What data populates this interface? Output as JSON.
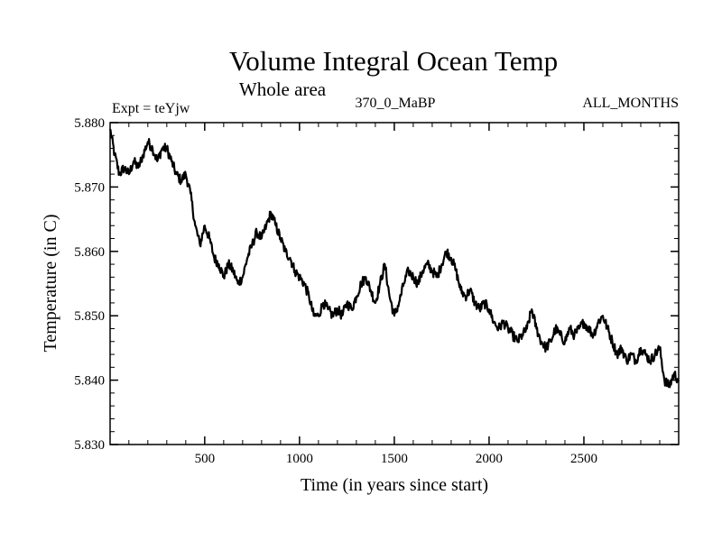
{
  "chart_data": {
    "type": "line",
    "title": "Volume Integral Ocean Temp",
    "subtitle": "Whole area",
    "left_label": "Expt = teYjw",
    "center_label": "370_0_MaBP",
    "right_label": "ALL_MONTHS",
    "xlabel": "Time (in years since start)",
    "ylabel": "Temperature (in C)",
    "xlim": [
      1,
      3000
    ],
    "ylim": [
      5.83,
      5.88
    ],
    "xticks": [
      500,
      1000,
      1500,
      2000,
      2500
    ],
    "yticks": [
      "5.830",
      "5.840",
      "5.850",
      "5.860",
      "5.870",
      "5.880"
    ],
    "line_color": "#000000",
    "series": [
      {
        "name": "Volume integral ocean temperature",
        "x": [
          1,
          25,
          50,
          75,
          100,
          125,
          150,
          175,
          200,
          225,
          250,
          275,
          300,
          325,
          350,
          375,
          400,
          425,
          450,
          475,
          500,
          525,
          550,
          575,
          600,
          625,
          650,
          675,
          700,
          725,
          750,
          775,
          800,
          825,
          850,
          875,
          900,
          925,
          950,
          975,
          1000,
          1025,
          1050,
          1075,
          1100,
          1125,
          1150,
          1175,
          1200,
          1225,
          1250,
          1275,
          1300,
          1325,
          1350,
          1375,
          1400,
          1425,
          1450,
          1475,
          1500,
          1525,
          1550,
          1575,
          1600,
          1625,
          1650,
          1675,
          1700,
          1725,
          1750,
          1775,
          1800,
          1825,
          1850,
          1875,
          1900,
          1925,
          1950,
          1975,
          2000,
          2025,
          2050,
          2075,
          2100,
          2125,
          2150,
          2175,
          2200,
          2225,
          2250,
          2275,
          2300,
          2325,
          2350,
          2375,
          2400,
          2425,
          2450,
          2475,
          2500,
          2525,
          2550,
          2575,
          2600,
          2625,
          2650,
          2675,
          2700,
          2725,
          2750,
          2775,
          2800,
          2825,
          2850,
          2875,
          2900,
          2925,
          2950,
          2975,
          3000
        ],
        "values": [
          5.879,
          5.875,
          5.872,
          5.873,
          5.872,
          5.874,
          5.873,
          5.875,
          5.877,
          5.876,
          5.874,
          5.876,
          5.876,
          5.874,
          5.872,
          5.871,
          5.872,
          5.869,
          5.864,
          5.861,
          5.864,
          5.862,
          5.859,
          5.858,
          5.856,
          5.858,
          5.857,
          5.855,
          5.856,
          5.859,
          5.861,
          5.863,
          5.862,
          5.864,
          5.866,
          5.864,
          5.862,
          5.86,
          5.859,
          5.857,
          5.856,
          5.855,
          5.853,
          5.85,
          5.85,
          5.852,
          5.851,
          5.85,
          5.851,
          5.85,
          5.852,
          5.851,
          5.853,
          5.855,
          5.856,
          5.854,
          5.852,
          5.855,
          5.858,
          5.853,
          5.85,
          5.852,
          5.855,
          5.857,
          5.856,
          5.855,
          5.857,
          5.858,
          5.857,
          5.856,
          5.858,
          5.86,
          5.859,
          5.857,
          5.854,
          5.853,
          5.854,
          5.852,
          5.851,
          5.852,
          5.851,
          5.849,
          5.848,
          5.849,
          5.848,
          5.847,
          5.846,
          5.847,
          5.848,
          5.851,
          5.848,
          5.846,
          5.845,
          5.846,
          5.848,
          5.847,
          5.846,
          5.848,
          5.847,
          5.848,
          5.849,
          5.848,
          5.847,
          5.849,
          5.85,
          5.848,
          5.846,
          5.844,
          5.845,
          5.843,
          5.844,
          5.843,
          5.845,
          5.844,
          5.843,
          5.844,
          5.845,
          5.84,
          5.839,
          5.841,
          5.84
        ]
      }
    ]
  }
}
